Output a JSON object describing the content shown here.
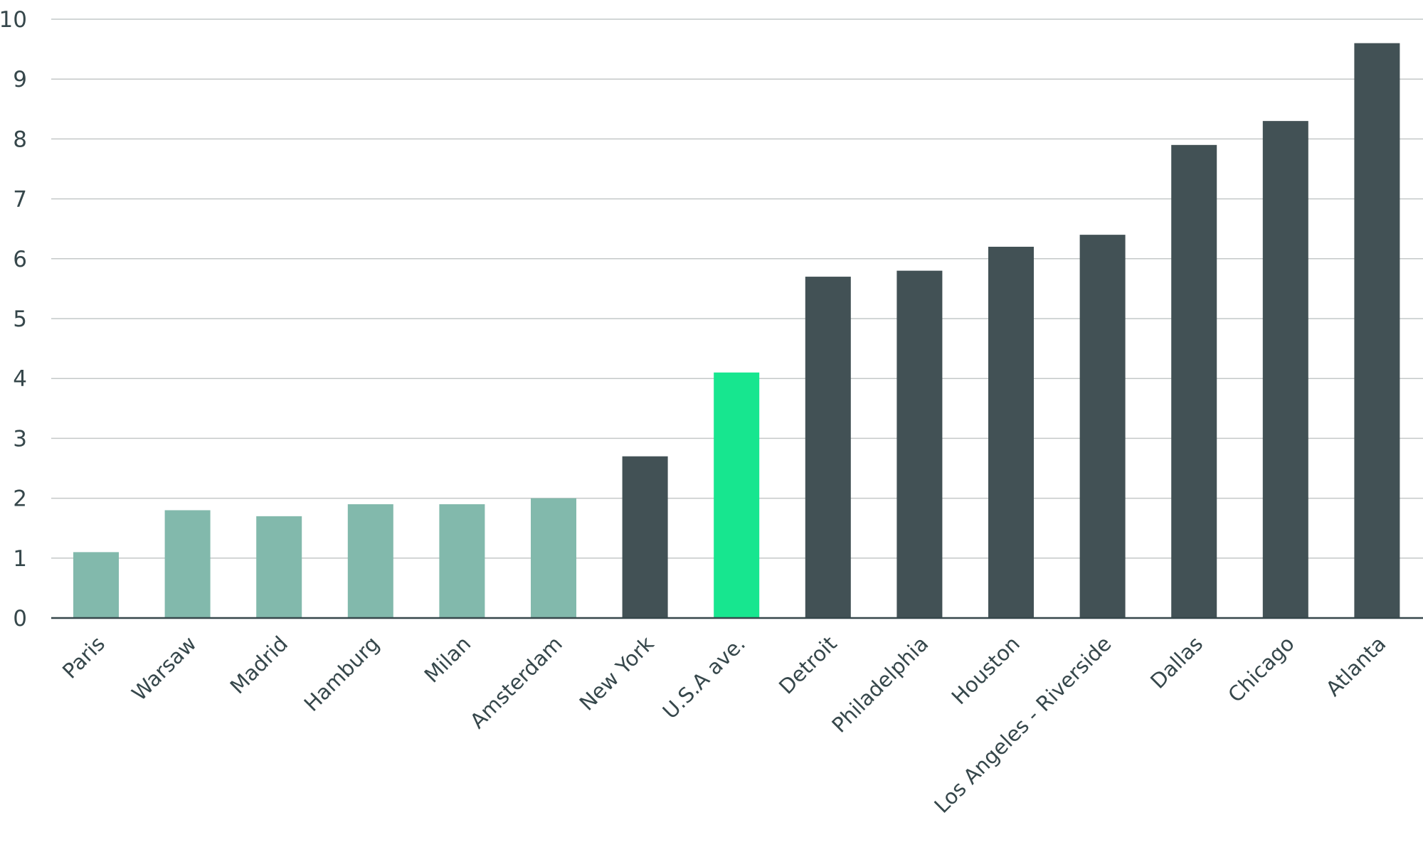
{
  "chart_data": {
    "type": "bar",
    "title": "",
    "xlabel": "",
    "ylabel": "",
    "ylim": [
      0,
      10
    ],
    "yticks": [
      "0",
      "1",
      "2",
      "3",
      "4",
      "5",
      "6",
      "7",
      "8",
      "9",
      "10"
    ],
    "grid": true,
    "categories": [
      "Paris",
      "Warsaw",
      "Madrid",
      "Hamburg",
      "Milan",
      "Amsterdam",
      "New York",
      "U.S.A ave.",
      "Detroit",
      "Philadelphia",
      "Houston",
      "Los Angeles - Riverside",
      "Dallas",
      "Chicago",
      "Atlanta"
    ],
    "values": [
      1.1,
      1.8,
      1.7,
      1.9,
      1.9,
      2.0,
      2.7,
      4.1,
      5.7,
      5.8,
      6.2,
      6.4,
      7.9,
      8.3,
      9.6
    ],
    "bar_groups": [
      "europe",
      "europe",
      "europe",
      "europe",
      "europe",
      "europe",
      "us",
      "average",
      "us",
      "us",
      "us",
      "us",
      "us",
      "us",
      "us"
    ],
    "colors": {
      "europe": "#82b9ac",
      "us": "#425155",
      "average": "#17e68f",
      "grid": "#c4c8c8",
      "axis": "#36474b"
    }
  }
}
